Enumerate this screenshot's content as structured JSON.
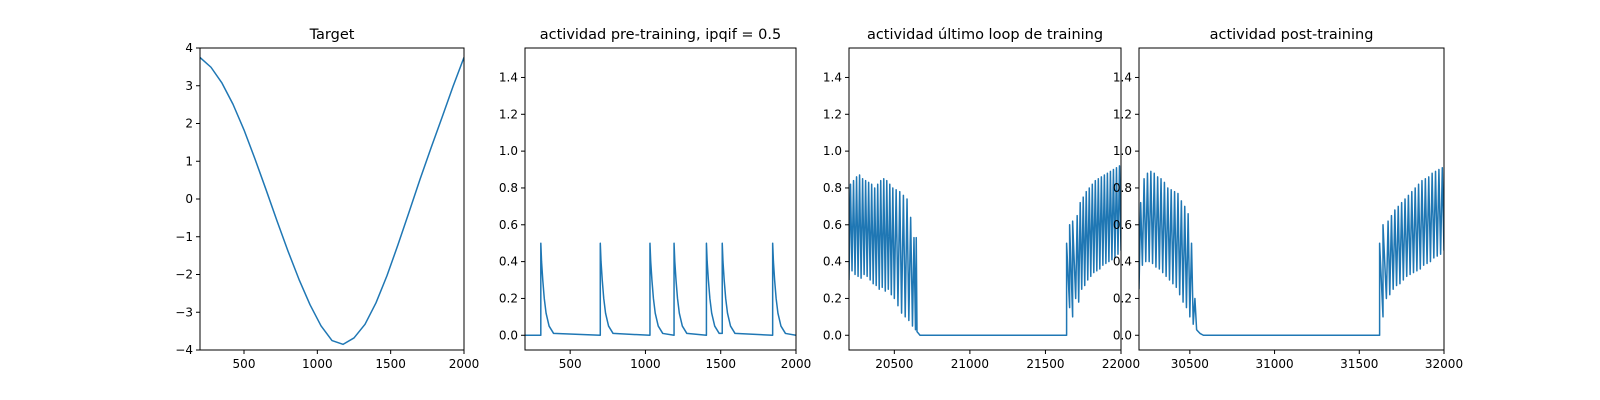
{
  "figure": {
    "line_color": "#1f77b4",
    "background": "#ffffff"
  },
  "chart_data": [
    {
      "type": "line",
      "title": "Target",
      "xlabel": "",
      "ylabel": "",
      "xlim": [
        200,
        2000
      ],
      "ylim": [
        -4,
        4
      ],
      "xticks": [
        500,
        1000,
        1500,
        2000
      ],
      "xtick_labels": [
        "500",
        "1000",
        "1500",
        "2000"
      ],
      "yticks": [
        -4,
        -3,
        -2,
        -1,
        0,
        1,
        2,
        3,
        4
      ],
      "ytick_labels": [
        "−4",
        "−3",
        "−2",
        "−1",
        "0",
        "1",
        "2",
        "3",
        "4"
      ],
      "grid": false,
      "series": [
        {
          "color": "#1f77b4",
          "x": [
            200,
            275,
            350,
            425,
            500,
            575,
            650,
            725,
            800,
            875,
            950,
            1025,
            1100,
            1175,
            1250,
            1325,
            1400,
            1475,
            1550,
            1625,
            1700,
            1775,
            1850,
            1925,
            2000
          ],
          "y": [
            3.75,
            3.49,
            3.07,
            2.51,
            1.83,
            1.06,
            0.25,
            -0.58,
            -1.38,
            -2.13,
            -2.8,
            -3.36,
            -3.75,
            -3.85,
            -3.68,
            -3.32,
            -2.75,
            -2.03,
            -1.21,
            -0.35,
            0.52,
            1.35,
            2.16,
            2.98,
            3.75
          ]
        }
      ]
    },
    {
      "type": "line",
      "title": "actividad pre-training, ipqif = 0.5",
      "xlabel": "",
      "ylabel": "",
      "xlim": [
        200,
        2000
      ],
      "ylim": [
        -0.08,
        1.56
      ],
      "xticks": [
        500,
        1000,
        1500,
        2000
      ],
      "xtick_labels": [
        "500",
        "1000",
        "1500",
        "2000"
      ],
      "yticks": [
        0.0,
        0.2,
        0.4,
        0.6,
        0.8,
        1.0,
        1.2,
        1.4
      ],
      "ytick_labels": [
        "0.0",
        "0.2",
        "0.4",
        "0.6",
        "0.8",
        "1.0",
        "1.2",
        "1.4"
      ],
      "grid": false,
      "series": [
        {
          "color": "#1f77b4",
          "x": [
            200,
            305,
            305,
            310,
            318,
            328,
            340,
            360,
            390,
            700,
            700,
            705,
            713,
            723,
            735,
            755,
            785,
            1030,
            1030,
            1035,
            1043,
            1053,
            1065,
            1085,
            1115,
            1190,
            1190,
            1195,
            1203,
            1213,
            1225,
            1245,
            1275,
            1405,
            1405,
            1410,
            1418,
            1428,
            1440,
            1460,
            1490,
            1510,
            1510,
            1515,
            1523,
            1533,
            1545,
            1565,
            1595,
            1845,
            1845,
            1850,
            1858,
            1868,
            1880,
            1900,
            1930,
            2000
          ],
          "y": [
            0,
            0,
            0.5,
            0.4,
            0.3,
            0.2,
            0.12,
            0.05,
            0.01,
            0,
            0.5,
            0.4,
            0.3,
            0.2,
            0.12,
            0.05,
            0.01,
            0,
            0.5,
            0.4,
            0.3,
            0.2,
            0.12,
            0.05,
            0.01,
            0,
            0.5,
            0.4,
            0.3,
            0.2,
            0.12,
            0.05,
            0.01,
            0,
            0.5,
            0.4,
            0.3,
            0.2,
            0.12,
            0.05,
            0.01,
            0.01,
            0.5,
            0.4,
            0.3,
            0.2,
            0.12,
            0.05,
            0.01,
            0,
            0.5,
            0.4,
            0.3,
            0.2,
            0.12,
            0.05,
            0.01,
            0
          ]
        }
      ]
    },
    {
      "type": "line",
      "title": "actividad último loop de training",
      "xlabel": "",
      "ylabel": "",
      "xlim": [
        20200,
        22000
      ],
      "ylim": [
        -0.08,
        1.56
      ],
      "xticks": [
        20500,
        21000,
        21500,
        22000
      ],
      "xtick_labels": [
        "20500",
        "21000",
        "21500",
        "22000"
      ],
      "yticks": [
        0.0,
        0.2,
        0.4,
        0.6,
        0.8,
        1.0,
        1.2,
        1.4
      ],
      "ytick_labels": [
        "0.0",
        "0.2",
        "0.4",
        "0.6",
        "0.8",
        "1.0",
        "1.2",
        "1.4"
      ],
      "grid": false,
      "series": [
        {
          "color": "#1f77b4",
          "x": [
            20200,
            20210,
            20220,
            20230,
            20240,
            20250,
            20260,
            20270,
            20280,
            20290,
            20300,
            20310,
            20320,
            20330,
            20340,
            20350,
            20360,
            20370,
            20380,
            20390,
            20400,
            20410,
            20420,
            20430,
            20440,
            20450,
            20460,
            20470,
            20480,
            20490,
            20500,
            20512,
            20524,
            20536,
            20548,
            20560,
            20572,
            20584,
            20596,
            20608,
            20620,
            20630,
            20640,
            20645,
            20650,
            20660,
            20670,
            20680,
            20700,
            20720,
            20750,
            20800,
            21000,
            21200,
            21400,
            21600,
            21640,
            21640,
            21660,
            21660,
            21680,
            21680,
            21700,
            21710,
            21720,
            21730,
            21740,
            21750,
            21760,
            21770,
            21780,
            21790,
            21800,
            21810,
            21820,
            21830,
            21840,
            21850,
            21860,
            21870,
            21880,
            21890,
            21900,
            21910,
            21920,
            21930,
            21940,
            21950,
            21960,
            21970,
            21980,
            21990,
            22000
          ],
          "y": [
            0.3,
            0.82,
            0.35,
            0.84,
            0.33,
            0.86,
            0.32,
            0.87,
            0.31,
            0.85,
            0.33,
            0.84,
            0.32,
            0.83,
            0.3,
            0.82,
            0.28,
            0.8,
            0.27,
            0.82,
            0.25,
            0.84,
            0.26,
            0.85,
            0.24,
            0.84,
            0.25,
            0.82,
            0.22,
            0.8,
            0.2,
            0.79,
            0.16,
            0.78,
            0.12,
            0.76,
            0.1,
            0.74,
            0.08,
            0.64,
            0.05,
            0.53,
            0.03,
            0.53,
            0.02,
            0.01,
            0.0,
            0.0,
            0.0,
            0.0,
            0.0,
            0.0,
            0.0,
            0.0,
            0.0,
            0.0,
            0.0,
            0.5,
            0.15,
            0.6,
            0.1,
            0.62,
            0.2,
            0.65,
            0.18,
            0.72,
            0.25,
            0.75,
            0.27,
            0.78,
            0.3,
            0.8,
            0.32,
            0.82,
            0.34,
            0.84,
            0.35,
            0.85,
            0.36,
            0.86,
            0.38,
            0.87,
            0.39,
            0.88,
            0.4,
            0.89,
            0.41,
            0.9,
            0.42,
            0.91,
            0.44,
            0.92,
            0.46
          ]
        }
      ]
    },
    {
      "type": "line",
      "title": "actividad post-training",
      "xlabel": "",
      "ylabel": "",
      "xlim": [
        30200,
        32000
      ],
      "ylim": [
        -0.08,
        1.56
      ],
      "xticks": [
        30500,
        31000,
        31500,
        32000
      ],
      "xtick_labels": [
        "30500",
        "31000",
        "31500",
        "32000"
      ],
      "yticks": [
        0.0,
        0.2,
        0.4,
        0.6,
        0.8,
        1.0,
        1.2,
        1.4
      ],
      "ytick_labels": [
        "0.0",
        "0.2",
        "0.4",
        "0.6",
        "0.8",
        "1.0",
        "1.2",
        "1.4"
      ],
      "grid": false,
      "series": [
        {
          "color": "#1f77b4",
          "x": [
            30200,
            30210,
            30220,
            30230,
            30240,
            30250,
            30260,
            30270,
            30280,
            30290,
            30300,
            30310,
            30320,
            30330,
            30340,
            30350,
            30360,
            30370,
            30380,
            30390,
            30400,
            30410,
            30420,
            30430,
            30440,
            30450,
            30460,
            30470,
            30480,
            30490,
            30500,
            30510,
            30520,
            30530,
            30540,
            30550,
            30560,
            30580,
            30600,
            30650,
            30800,
            31000,
            31200,
            31400,
            31620,
            31620,
            31640,
            31640,
            31660,
            31670,
            31680,
            31690,
            31700,
            31710,
            31720,
            31730,
            31740,
            31750,
            31760,
            31770,
            31780,
            31790,
            31800,
            31810,
            31820,
            31830,
            31840,
            31850,
            31860,
            31870,
            31880,
            31890,
            31900,
            31910,
            31920,
            31930,
            31940,
            31950,
            31960,
            31970,
            31980,
            31990,
            32000
          ],
          "y": [
            0.25,
            0.72,
            0.38,
            0.85,
            0.4,
            0.88,
            0.4,
            0.89,
            0.39,
            0.88,
            0.37,
            0.86,
            0.36,
            0.85,
            0.34,
            0.83,
            0.32,
            0.8,
            0.3,
            0.79,
            0.28,
            0.78,
            0.26,
            0.77,
            0.22,
            0.73,
            0.18,
            0.7,
            0.15,
            0.66,
            0.1,
            0.5,
            0.06,
            0.2,
            0.03,
            0.02,
            0.01,
            0.0,
            0.0,
            0.0,
            0.0,
            0.0,
            0.0,
            0.0,
            0.0,
            0.5,
            0.1,
            0.6,
            0.2,
            0.62,
            0.22,
            0.65,
            0.25,
            0.68,
            0.27,
            0.7,
            0.28,
            0.72,
            0.3,
            0.74,
            0.32,
            0.76,
            0.33,
            0.78,
            0.34,
            0.8,
            0.35,
            0.82,
            0.36,
            0.84,
            0.38,
            0.85,
            0.39,
            0.86,
            0.4,
            0.88,
            0.42,
            0.89,
            0.43,
            0.9,
            0.44,
            0.91,
            0.46
          ]
        }
      ]
    }
  ]
}
